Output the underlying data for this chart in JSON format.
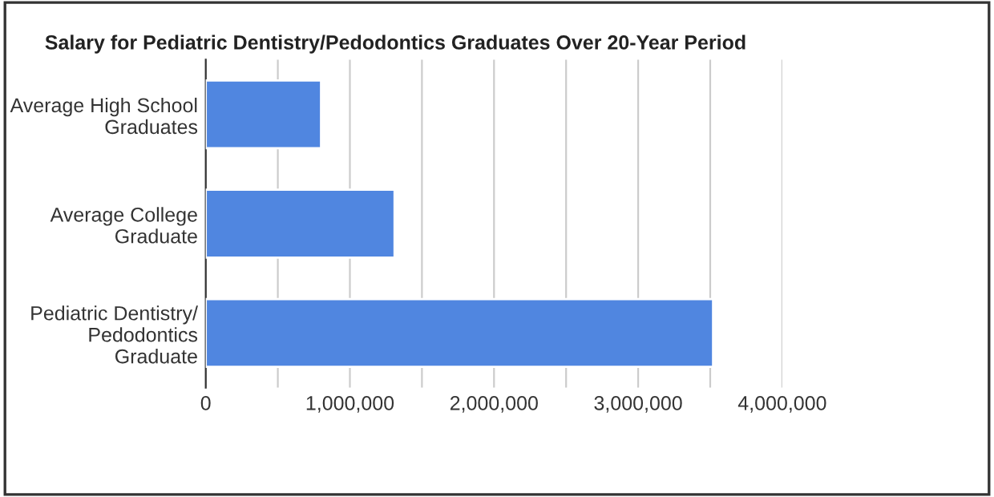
{
  "chart_data": {
    "type": "bar",
    "orientation": "horizontal",
    "title": "Salary for Pediatric Dentistry/Pedodontics Graduates Over 20-Year Period",
    "categories": [
      "Average High School\nGraduates",
      "Average College\nGraduate",
      "Pediatric Dentistry/\nPedodontics\nGraduate"
    ],
    "values": [
      800000,
      1310000,
      3520000
    ],
    "color": "#5086e0",
    "xlim": [
      0,
      4000000
    ],
    "xticks": [
      0,
      {
        "value": 500000,
        "label": null
      },
      {
        "value": 1000000,
        "label": "1,000,000"
      },
      {
        "value": 1500000,
        "label": null
      },
      {
        "value": 2000000,
        "label": "2,000,000"
      },
      {
        "value": 2500000,
        "label": null
      },
      {
        "value": 3000000,
        "label": "3,000,000"
      },
      {
        "value": 3500000,
        "label": null
      },
      {
        "value": 4000000,
        "label": "4,000,000"
      }
    ],
    "grid": "x",
    "legend": false
  }
}
